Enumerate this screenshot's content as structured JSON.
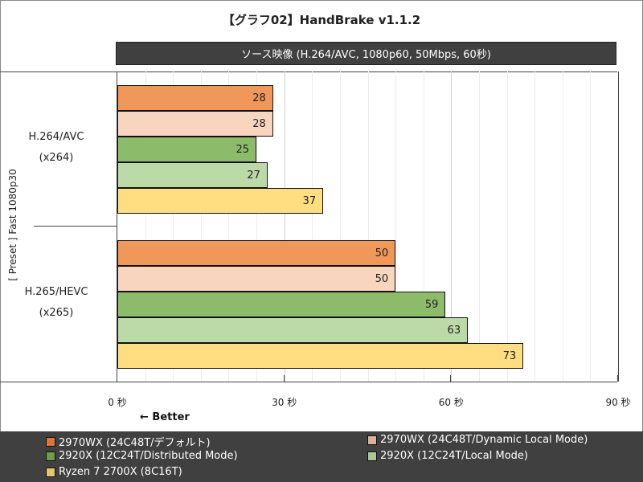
{
  "header": {
    "title": "【グラフ02】HandBrake v1.1.2",
    "subtitle": "ソース映像 (H.264/AVC, 1080p60, 50Mbps, 60秒)"
  },
  "axis": {
    "y_title": "[ Preset ]  Fast 1080p30",
    "x_ticks": [
      "0 秒",
      "30 秒",
      "60 秒",
      "90 秒"
    ],
    "direction_note": "← Better"
  },
  "categories": [
    {
      "line1": "H.264/AVC",
      "line2": "(x264)"
    },
    {
      "line1": "H.265/HEVC",
      "line2": "(x265)"
    }
  ],
  "legend": [
    {
      "label": "2970WX (24C48T/デフォルト)",
      "color": "#D9763B"
    },
    {
      "label": "2970WX (24C48T/Dynamic Local Mode)",
      "color": "#D8B29B"
    },
    {
      "label": "2920X (12C24T/Distributed Mode)",
      "color": "#6F9E4A"
    },
    {
      "label": "2920X (12C24T/Local Mode)",
      "color": "#A9C795"
    },
    {
      "label": "Ryzen 7 2700X (8C16T)",
      "color": "#E3C56C"
    }
  ],
  "bar_colors": [
    "#F0975A",
    "#F8D5BE",
    "#8CBC6A",
    "#BCDAA8",
    "#FFDE82"
  ],
  "chart_data": {
    "type": "bar",
    "orientation": "horizontal",
    "title": "【グラフ02】HandBrake v1.1.2",
    "subtitle": "ソース映像 (H.264/AVC, 1080p60, 50Mbps, 60秒)",
    "categories": [
      "H.264/AVC (x264)",
      "H.265/HEVC (x265)"
    ],
    "series": [
      {
        "name": "2970WX (24C48T/デフォルト)",
        "values": [
          28,
          50
        ]
      },
      {
        "name": "2970WX (24C48T/Dynamic Local Mode)",
        "values": [
          28,
          50
        ]
      },
      {
        "name": "2920X (12C24T/Distributed Mode)",
        "values": [
          25,
          59
        ]
      },
      {
        "name": "2920X (12C24T/Local Mode)",
        "values": [
          27,
          63
        ]
      },
      {
        "name": "Ryzen 7 2700X (8C16T)",
        "values": [
          37,
          73
        ]
      }
    ],
    "xlabel": "秒",
    "ylabel": "[ Preset ] Fast 1080p30",
    "xlim": [
      0,
      90
    ],
    "x_ticks": [
      0,
      30,
      60,
      90
    ],
    "annotation": "← Better",
    "grid": true,
    "legend_position": "bottom"
  }
}
